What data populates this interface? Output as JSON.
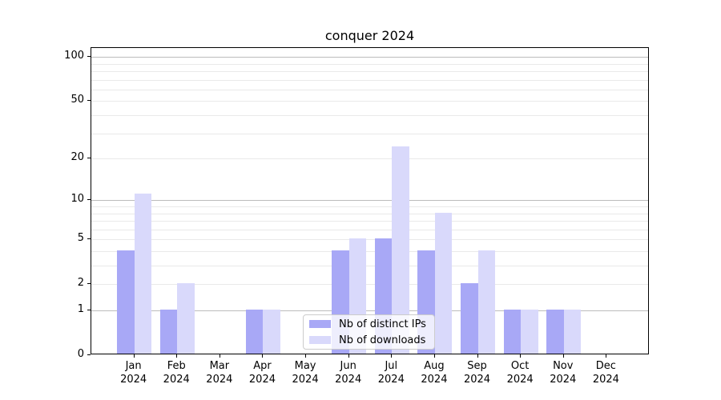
{
  "chart_data": {
    "type": "bar",
    "title": "conquer 2024",
    "categories": [
      "Jan",
      "Feb",
      "Mar",
      "Apr",
      "May",
      "Jun",
      "Jul",
      "Aug",
      "Sep",
      "Oct",
      "Nov",
      "Dec"
    ],
    "category_year": "2024",
    "series": [
      {
        "name": "Nb of distinct IPs",
        "color": "#a8a8f6",
        "values": [
          4,
          1,
          0,
          1,
          0,
          4,
          5,
          4,
          2,
          1,
          1,
          0
        ]
      },
      {
        "name": "Nb of downloads",
        "color": "#d9d9fb",
        "values": [
          11,
          2,
          0,
          1,
          0,
          5,
          24,
          8,
          4,
          1,
          1,
          0
        ]
      }
    ],
    "yscale": "log1p",
    "ylim": [
      0,
      115
    ],
    "yticks": [
      0,
      1,
      2,
      5,
      10,
      20,
      50,
      100
    ],
    "grid": {
      "major": [
        1,
        10,
        100
      ],
      "minor": [
        2,
        3,
        4,
        5,
        6,
        7,
        8,
        9,
        20,
        30,
        40,
        50,
        60,
        70,
        80,
        90
      ],
      "major_color": "#bcbcbc",
      "minor_color": "#e9e9e9"
    },
    "legend_position": "lower center",
    "bar_group_width_fraction": 0.8
  }
}
